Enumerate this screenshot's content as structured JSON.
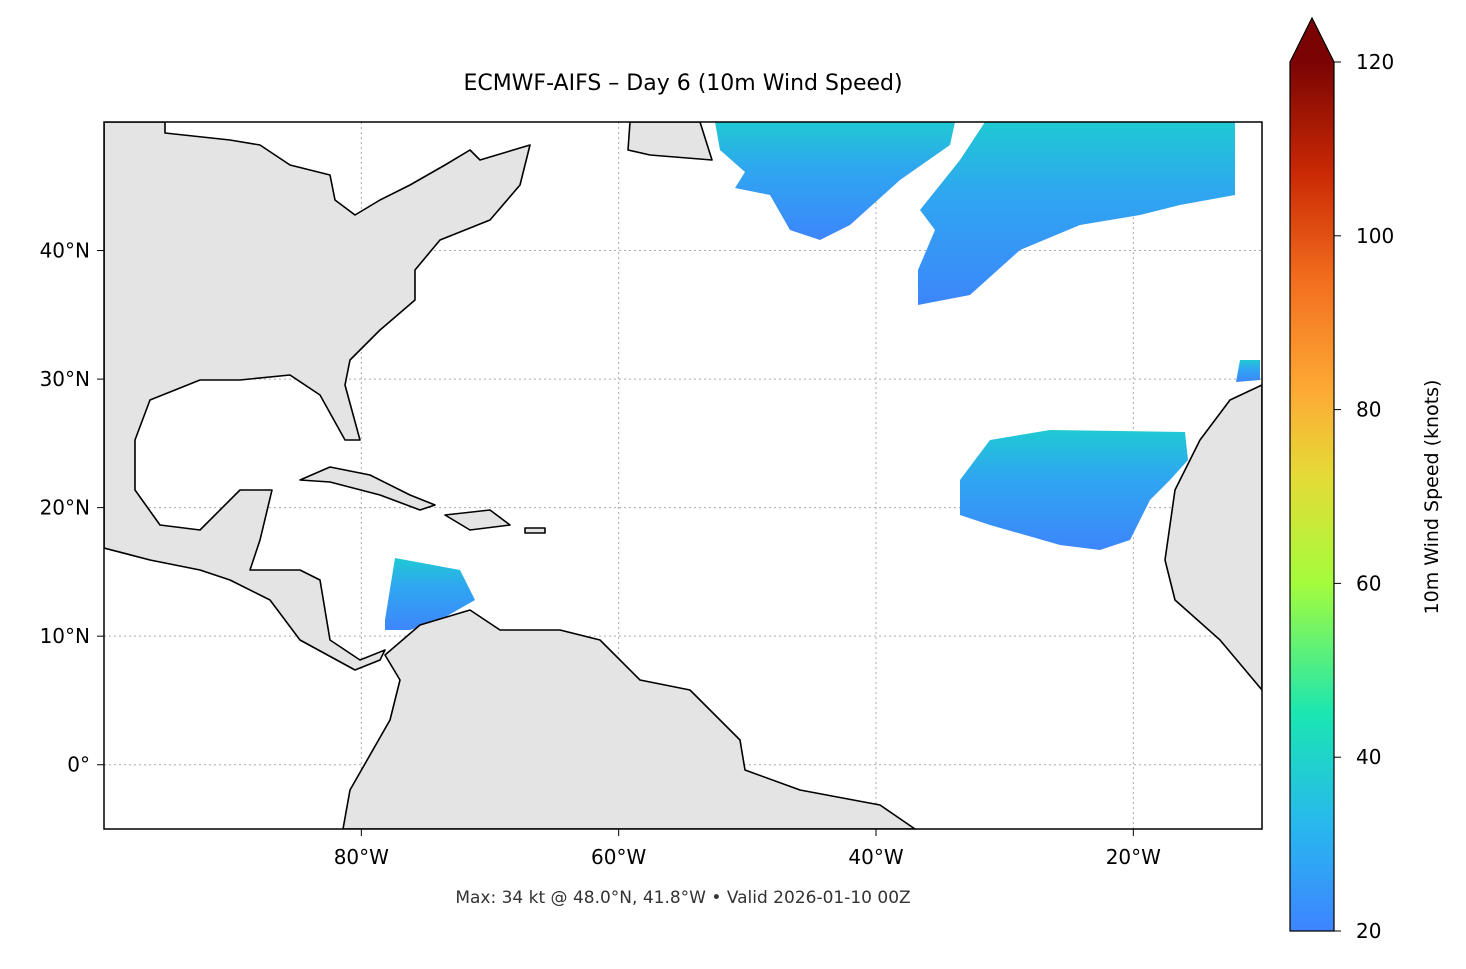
{
  "map": {
    "title": "ECMWF-AIFS – Day 6 (10m Wind Speed)",
    "xlim": [
      -100,
      -10
    ],
    "ylim": [
      -5,
      50
    ],
    "xticks": [
      {
        "value": -80,
        "label": "80°W"
      },
      {
        "value": -60,
        "label": "60°W"
      },
      {
        "value": -40,
        "label": "40°W"
      },
      {
        "value": -20,
        "label": "20°W"
      }
    ],
    "yticks": [
      {
        "value": 0,
        "label": "0°"
      },
      {
        "value": 10,
        "label": "10°N"
      },
      {
        "value": 20,
        "label": "20°N"
      },
      {
        "value": 30,
        "label": "30°N"
      },
      {
        "value": 40,
        "label": "40°N"
      }
    ],
    "footer": "Max: 34 kt @ 48.0°N, 41.8°W • Valid 2026-01-10 00Z",
    "colorbar": {
      "label": "10m Wind Speed (knots)",
      "lim": [
        20,
        120
      ],
      "ticks": [
        20,
        40,
        60,
        80,
        100,
        120
      ]
    }
  }
}
